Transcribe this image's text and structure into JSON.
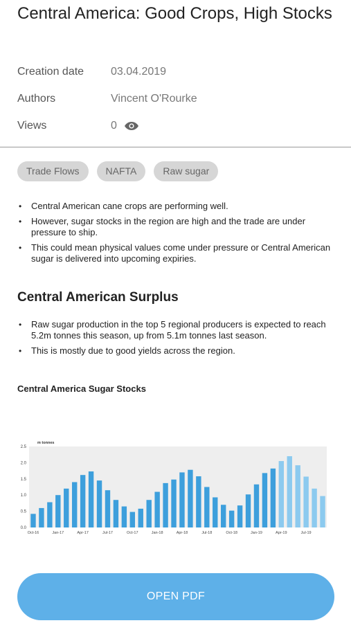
{
  "article": {
    "title": "Central America: Good Crops, High Stocks"
  },
  "meta": {
    "creation_label": "Creation date",
    "creation_value": "03.04.2019",
    "authors_label": "Authors",
    "authors_value": "Vincent O'Rourke",
    "views_label": "Views",
    "views_value": "0"
  },
  "tags": [
    "Trade Flows",
    "NAFTA",
    "Raw sugar"
  ],
  "summary_bullets": [
    "Central American cane crops are performing well.",
    "However, sugar stocks in the region are high and the trade are under pressure to ship.",
    "This could mean physical values come under pressure or Central American sugar is delivered into upcoming expiries."
  ],
  "section": {
    "heading": "Central American Surplus",
    "bullets": [
      "Raw sugar production in the top 5 regional producers is expected to reach 5.2m tonnes this season, up from 5.1m tonnes last season.",
      "This is mostly due to good yields across the region."
    ],
    "chart_title": "Central America Sugar Stocks"
  },
  "colors": {
    "bar_actual": "#3d9fdc",
    "bar_forecast": "#8ccaef",
    "plot_bg": "#eeeeee",
    "button": "#5eb0e8"
  },
  "chart_data": {
    "type": "bar",
    "ylabel": "m tonnes",
    "ylim": [
      0,
      2.5
    ],
    "yticks": [
      "0.0",
      "0.5",
      "1.0",
      "1.5",
      "2.0",
      "2.5"
    ],
    "x_tick_labels": [
      "Oct-16",
      "Jan-17",
      "Apr-17",
      "Jul-17",
      "Oct-17",
      "Jan-18",
      "Apr-18",
      "Jul-18",
      "Oct-18",
      "Jan-19",
      "Apr-19",
      "Jul-19"
    ],
    "categories": [
      "Oct-16",
      "Nov-16",
      "Dec-16",
      "Jan-17",
      "Feb-17",
      "Mar-17",
      "Apr-17",
      "May-17",
      "Jun-17",
      "Jul-17",
      "Aug-17",
      "Sep-17",
      "Oct-17",
      "Nov-17",
      "Dec-17",
      "Jan-18",
      "Feb-18",
      "Mar-18",
      "Apr-18",
      "May-18",
      "Jun-18",
      "Jul-18",
      "Aug-18",
      "Sep-18",
      "Oct-18",
      "Nov-18",
      "Dec-18",
      "Jan-19",
      "Feb-19",
      "Mar-19",
      "Apr-19",
      "May-19",
      "Jun-19",
      "Jul-19",
      "Aug-19",
      "Sep-19"
    ],
    "values": [
      0.42,
      0.6,
      0.78,
      1.0,
      1.2,
      1.4,
      1.62,
      1.73,
      1.45,
      1.15,
      0.85,
      0.65,
      0.48,
      0.58,
      0.85,
      1.1,
      1.37,
      1.48,
      1.7,
      1.78,
      1.58,
      1.25,
      0.93,
      0.7,
      0.52,
      0.68,
      1.02,
      1.33,
      1.68,
      1.82,
      2.05,
      2.2,
      1.92,
      1.57,
      1.2,
      0.97
    ],
    "forecast_start_index": 30,
    "grid": false,
    "legend": "none"
  },
  "button": {
    "label": "OPEN PDF"
  }
}
